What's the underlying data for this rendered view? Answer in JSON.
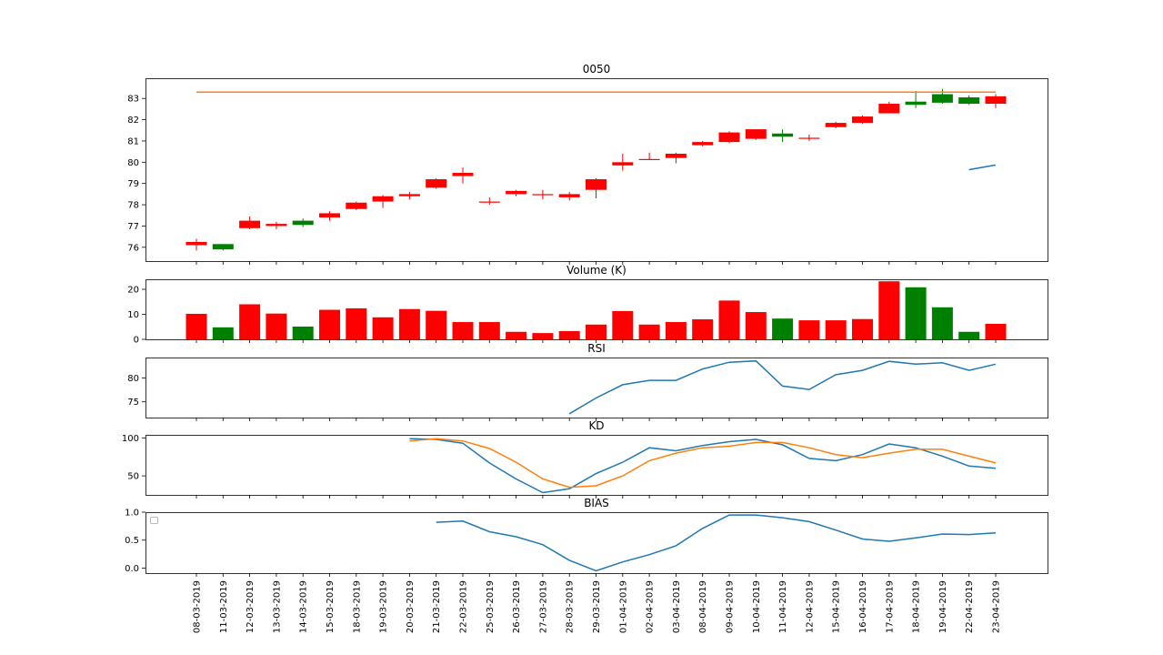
{
  "chart_data": {
    "type": "candlestick-with-indicators",
    "dates": [
      "08-03-2019",
      "11-03-2019",
      "12-03-2019",
      "13-03-2019",
      "14-03-2019",
      "15-03-2019",
      "18-03-2019",
      "19-03-2019",
      "20-03-2019",
      "21-03-2019",
      "22-03-2019",
      "25-03-2019",
      "26-03-2019",
      "27-03-2019",
      "28-03-2019",
      "29-03-2019",
      "01-04-2019",
      "02-04-2019",
      "03-04-2019",
      "08-04-2019",
      "09-04-2019",
      "10-04-2019",
      "11-04-2019",
      "12-04-2019",
      "15-04-2019",
      "16-04-2019",
      "17-04-2019",
      "18-04-2019",
      "19-04-2019",
      "22-04-2019",
      "23-04-2019"
    ],
    "price": {
      "title": "0050",
      "ylim": [
        75.35,
        83.95
      ],
      "yticks": [
        76,
        77,
        78,
        79,
        80,
        81,
        82,
        83
      ],
      "up_color": "#ff0000",
      "down_color": "#008000",
      "open": [
        76.1,
        76.15,
        76.9,
        77.0,
        77.25,
        77.4,
        77.8,
        78.15,
        78.4,
        78.8,
        79.35,
        78.15,
        78.5,
        78.5,
        78.35,
        78.7,
        79.85,
        80.15,
        80.2,
        80.8,
        80.95,
        81.1,
        81.35,
        81.15,
        81.65,
        81.85,
        82.3,
        82.85,
        83.2,
        83.05,
        82.75
      ],
      "close": [
        76.25,
        75.9,
        77.25,
        77.1,
        77.05,
        77.6,
        78.1,
        78.4,
        78.5,
        79.2,
        79.5,
        78.15,
        78.65,
        78.5,
        78.5,
        79.2,
        80.0,
        80.15,
        80.4,
        80.95,
        81.4,
        81.55,
        81.2,
        81.15,
        81.85,
        82.15,
        82.75,
        82.7,
        82.8,
        82.75,
        83.1
      ],
      "high": [
        76.4,
        76.15,
        77.45,
        77.2,
        77.35,
        77.7,
        78.15,
        78.45,
        78.6,
        79.25,
        79.75,
        78.35,
        78.7,
        78.7,
        78.6,
        79.25,
        80.4,
        80.45,
        80.45,
        81.0,
        81.45,
        81.55,
        81.55,
        81.3,
        81.9,
        82.2,
        82.85,
        83.35,
        83.45,
        83.15,
        83.2
      ],
      "low": [
        75.85,
        75.85,
        76.85,
        76.85,
        76.95,
        77.25,
        77.75,
        77.85,
        78.25,
        78.75,
        79.0,
        78.0,
        78.4,
        78.25,
        78.2,
        78.3,
        79.6,
        80.1,
        79.95,
        80.75,
        80.9,
        81.05,
        80.95,
        81.0,
        81.6,
        81.8,
        82.3,
        82.55,
        82.75,
        82.7,
        82.55
      ],
      "lines": [
        {
          "name": "max",
          "color": "#ff7f0e",
          "start_index": 0,
          "values": [
            83.3,
            83.3,
            83.3,
            83.3,
            83.3,
            83.3,
            83.3,
            83.3,
            83.3,
            83.3,
            83.3,
            83.3,
            83.3,
            83.3,
            83.3,
            83.3,
            83.3,
            83.3,
            83.3,
            83.3,
            83.3,
            83.3,
            83.3,
            83.3,
            83.3,
            83.3,
            83.3,
            83.3,
            83.3,
            83.3,
            83.3
          ]
        },
        {
          "name": "ma",
          "color": "#1f77b4",
          "start_index": 29,
          "values": [
            79.65,
            79.87
          ]
        }
      ]
    },
    "volume": {
      "title": "Volume (K)",
      "ylim": [
        0,
        24
      ],
      "yticks": [
        0,
        10,
        20
      ],
      "values": [
        10.2,
        4.8,
        14.0,
        10.3,
        5.1,
        11.8,
        12.4,
        8.8,
        12.1,
        11.4,
        6.9,
        6.9,
        3.0,
        2.5,
        3.3,
        5.9,
        11.3,
        5.9,
        6.9,
        8.0,
        15.5,
        10.9,
        8.3,
        7.6,
        7.6,
        8.1,
        23.2,
        20.8,
        12.8,
        3.0,
        6.2
      ]
    },
    "rsi": {
      "title": "RSI",
      "ylim": [
        71.7,
        84.3
      ],
      "yticks": [
        75,
        80
      ],
      "color": "#1f77b4",
      "start_index": 14,
      "values": [
        72.5,
        75.8,
        78.6,
        79.5,
        79.5,
        81.9,
        83.3,
        83.6,
        78.3,
        77.6,
        80.7,
        81.6,
        83.5,
        82.9,
        83.2,
        81.6,
        82.9
      ]
    },
    "kd": {
      "title": "KD",
      "ylim": [
        25,
        104
      ],
      "yticks": [
        50,
        100
      ],
      "series": [
        {
          "name": "K",
          "color": "#1f77b4",
          "start_index": 8,
          "values": [
            99,
            98,
            93,
            67,
            46,
            28,
            33,
            53,
            68,
            87,
            83,
            90,
            95,
            98,
            91,
            73,
            70,
            78,
            92,
            87,
            76,
            63,
            60
          ]
        },
        {
          "name": "D",
          "color": "#ff7f0e",
          "start_index": 8,
          "values": [
            96,
            99,
            96,
            86,
            68,
            46,
            35,
            37,
            50,
            70,
            80,
            87,
            89,
            94,
            94,
            87,
            78,
            74,
            80,
            85,
            85,
            76,
            67
          ]
        }
      ]
    },
    "bias": {
      "title": "BIAS",
      "ylim": [
        -0.09,
        1.0
      ],
      "yticks": [
        0.0,
        0.5,
        1.0
      ],
      "ytick_labels": [
        "0.0",
        "0.5",
        "1.0"
      ],
      "color": "#1f77b4",
      "start_index": 9,
      "values": [
        0.82,
        0.84,
        0.65,
        0.56,
        0.42,
        0.14,
        -0.05,
        0.11,
        0.24,
        0.4,
        0.71,
        0.95,
        0.95,
        0.9,
        0.83,
        0.68,
        0.52,
        0.48,
        0.54,
        0.61,
        0.6,
        0.63
      ],
      "legend": "empty legend box, upper-left"
    }
  }
}
